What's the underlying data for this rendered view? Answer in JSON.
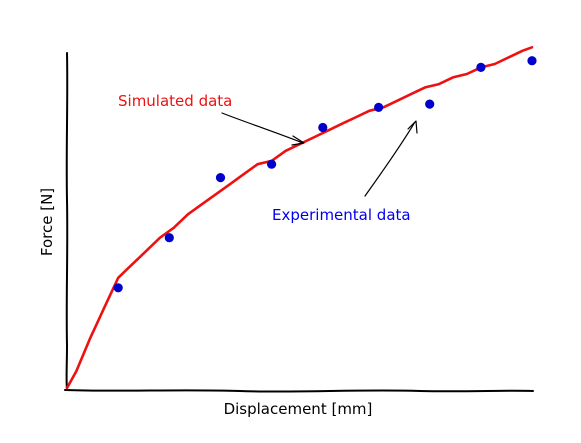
{
  "chart_data": {
    "type": "scatter",
    "title": "",
    "xlabel": "Displacement [mm]",
    "ylabel": "Force [N]",
    "xlim": [
      0,
      1
    ],
    "ylim": [
      0,
      1
    ],
    "grid": false,
    "legend": "none",
    "ticks": "none",
    "series": [
      {
        "kind": "line",
        "color": "#ee1111",
        "x": [
          0.0,
          0.02,
          0.05,
          0.08,
          0.11,
          0.14,
          0.17,
          0.2,
          0.23,
          0.26,
          0.29,
          0.32,
          0.35,
          0.38,
          0.41,
          0.44,
          0.47,
          0.5,
          0.53,
          0.56,
          0.59,
          0.62,
          0.65,
          0.68,
          0.71,
          0.74,
          0.77,
          0.8,
          0.83,
          0.86,
          0.89,
          0.92,
          0.95,
          0.98,
          1.0
        ],
        "y": [
          0.0,
          0.05,
          0.15,
          0.24,
          0.33,
          0.37,
          0.41,
          0.45,
          0.48,
          0.52,
          0.55,
          0.58,
          0.61,
          0.64,
          0.67,
          0.68,
          0.71,
          0.73,
          0.75,
          0.77,
          0.79,
          0.81,
          0.83,
          0.84,
          0.86,
          0.88,
          0.9,
          0.91,
          0.93,
          0.94,
          0.96,
          0.97,
          0.99,
          1.01,
          1.02
        ]
      },
      {
        "kind": "scatter",
        "color": "#0000cc",
        "x": [
          0.11,
          0.22,
          0.33,
          0.44,
          0.55,
          0.67,
          0.78,
          0.89,
          1.0
        ],
        "y": [
          0.3,
          0.45,
          0.63,
          0.67,
          0.78,
          0.84,
          0.85,
          0.96,
          0.98
        ]
      }
    ],
    "annotations": [
      {
        "text": "Simulated data",
        "color": "#ee1111"
      },
      {
        "text": "Experimental data",
        "color": "#0000ee"
      }
    ]
  }
}
